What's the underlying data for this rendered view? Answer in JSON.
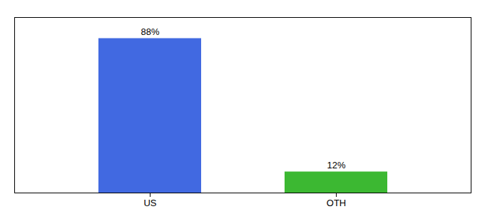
{
  "chart_data": {
    "type": "bar",
    "categories": [
      "US",
      "OTH"
    ],
    "values": [
      88,
      12
    ],
    "value_labels": [
      "88%",
      "12%"
    ],
    "colors": [
      "#4169e1",
      "#3cb832"
    ],
    "ylim": [
      0,
      100
    ],
    "data_labels": true,
    "tick_labels": "x"
  }
}
